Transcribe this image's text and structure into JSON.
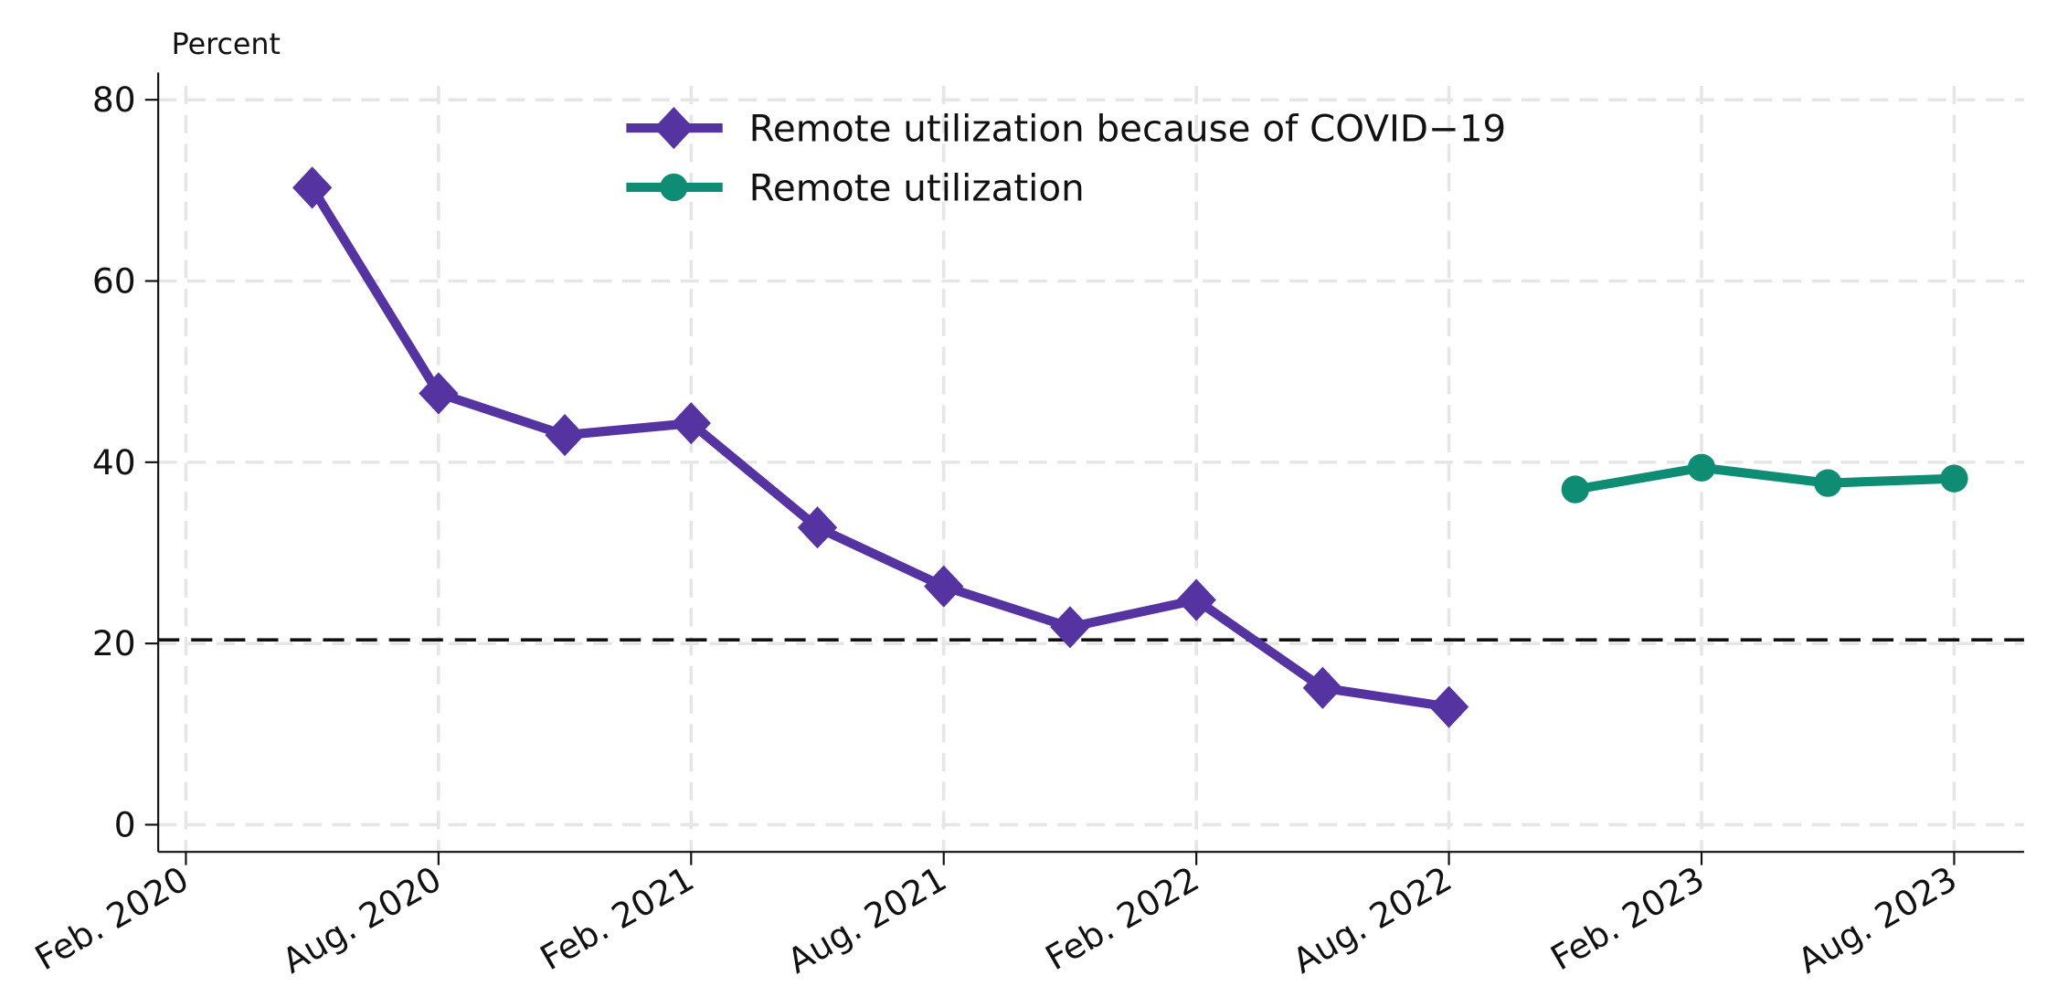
{
  "chart_data": {
    "type": "line",
    "y_label": "Percent",
    "x": [
      "2020-05",
      "2020-08",
      "2020-11",
      "2021-02",
      "2021-05",
      "2021-08",
      "2021-11",
      "2022-02",
      "2022-05",
      "2022-08",
      "2022-11",
      "2023-02",
      "2023-05",
      "2023-08"
    ],
    "series": [
      {
        "name": "Remote utilization because of COVID−19",
        "color": "#5533a0",
        "marker": "diamond",
        "values": [
          70.3,
          47.6,
          43.0,
          44.3,
          32.8,
          26.3,
          21.8,
          24.8,
          15.1,
          13.0,
          null,
          null,
          null,
          null
        ]
      },
      {
        "name": "Remote utilization",
        "color": "#0e8c74",
        "marker": "circle",
        "values": [
          null,
          null,
          null,
          null,
          null,
          null,
          null,
          null,
          null,
          null,
          37.0,
          39.4,
          37.7,
          38.2
        ]
      }
    ],
    "reference_line": 20.4,
    "xlim": [
      "2020-02",
      "2023-08"
    ],
    "xticks": [
      {
        "value": "2020-02",
        "label": "Feb. 2020"
      },
      {
        "value": "2020-08",
        "label": "Aug. 2020"
      },
      {
        "value": "2021-02",
        "label": "Feb. 2021"
      },
      {
        "value": "2021-08",
        "label": "Aug. 2021"
      },
      {
        "value": "2022-02",
        "label": "Feb. 2022"
      },
      {
        "value": "2022-08",
        "label": "Aug. 2022"
      },
      {
        "value": "2023-02",
        "label": "Feb. 2023"
      },
      {
        "value": "2023-08",
        "label": "Aug. 2023"
      }
    ],
    "ylim": [
      -3,
      83
    ],
    "yticks": [
      0,
      20,
      40,
      60,
      80
    ],
    "grid": true,
    "legend": "top"
  }
}
